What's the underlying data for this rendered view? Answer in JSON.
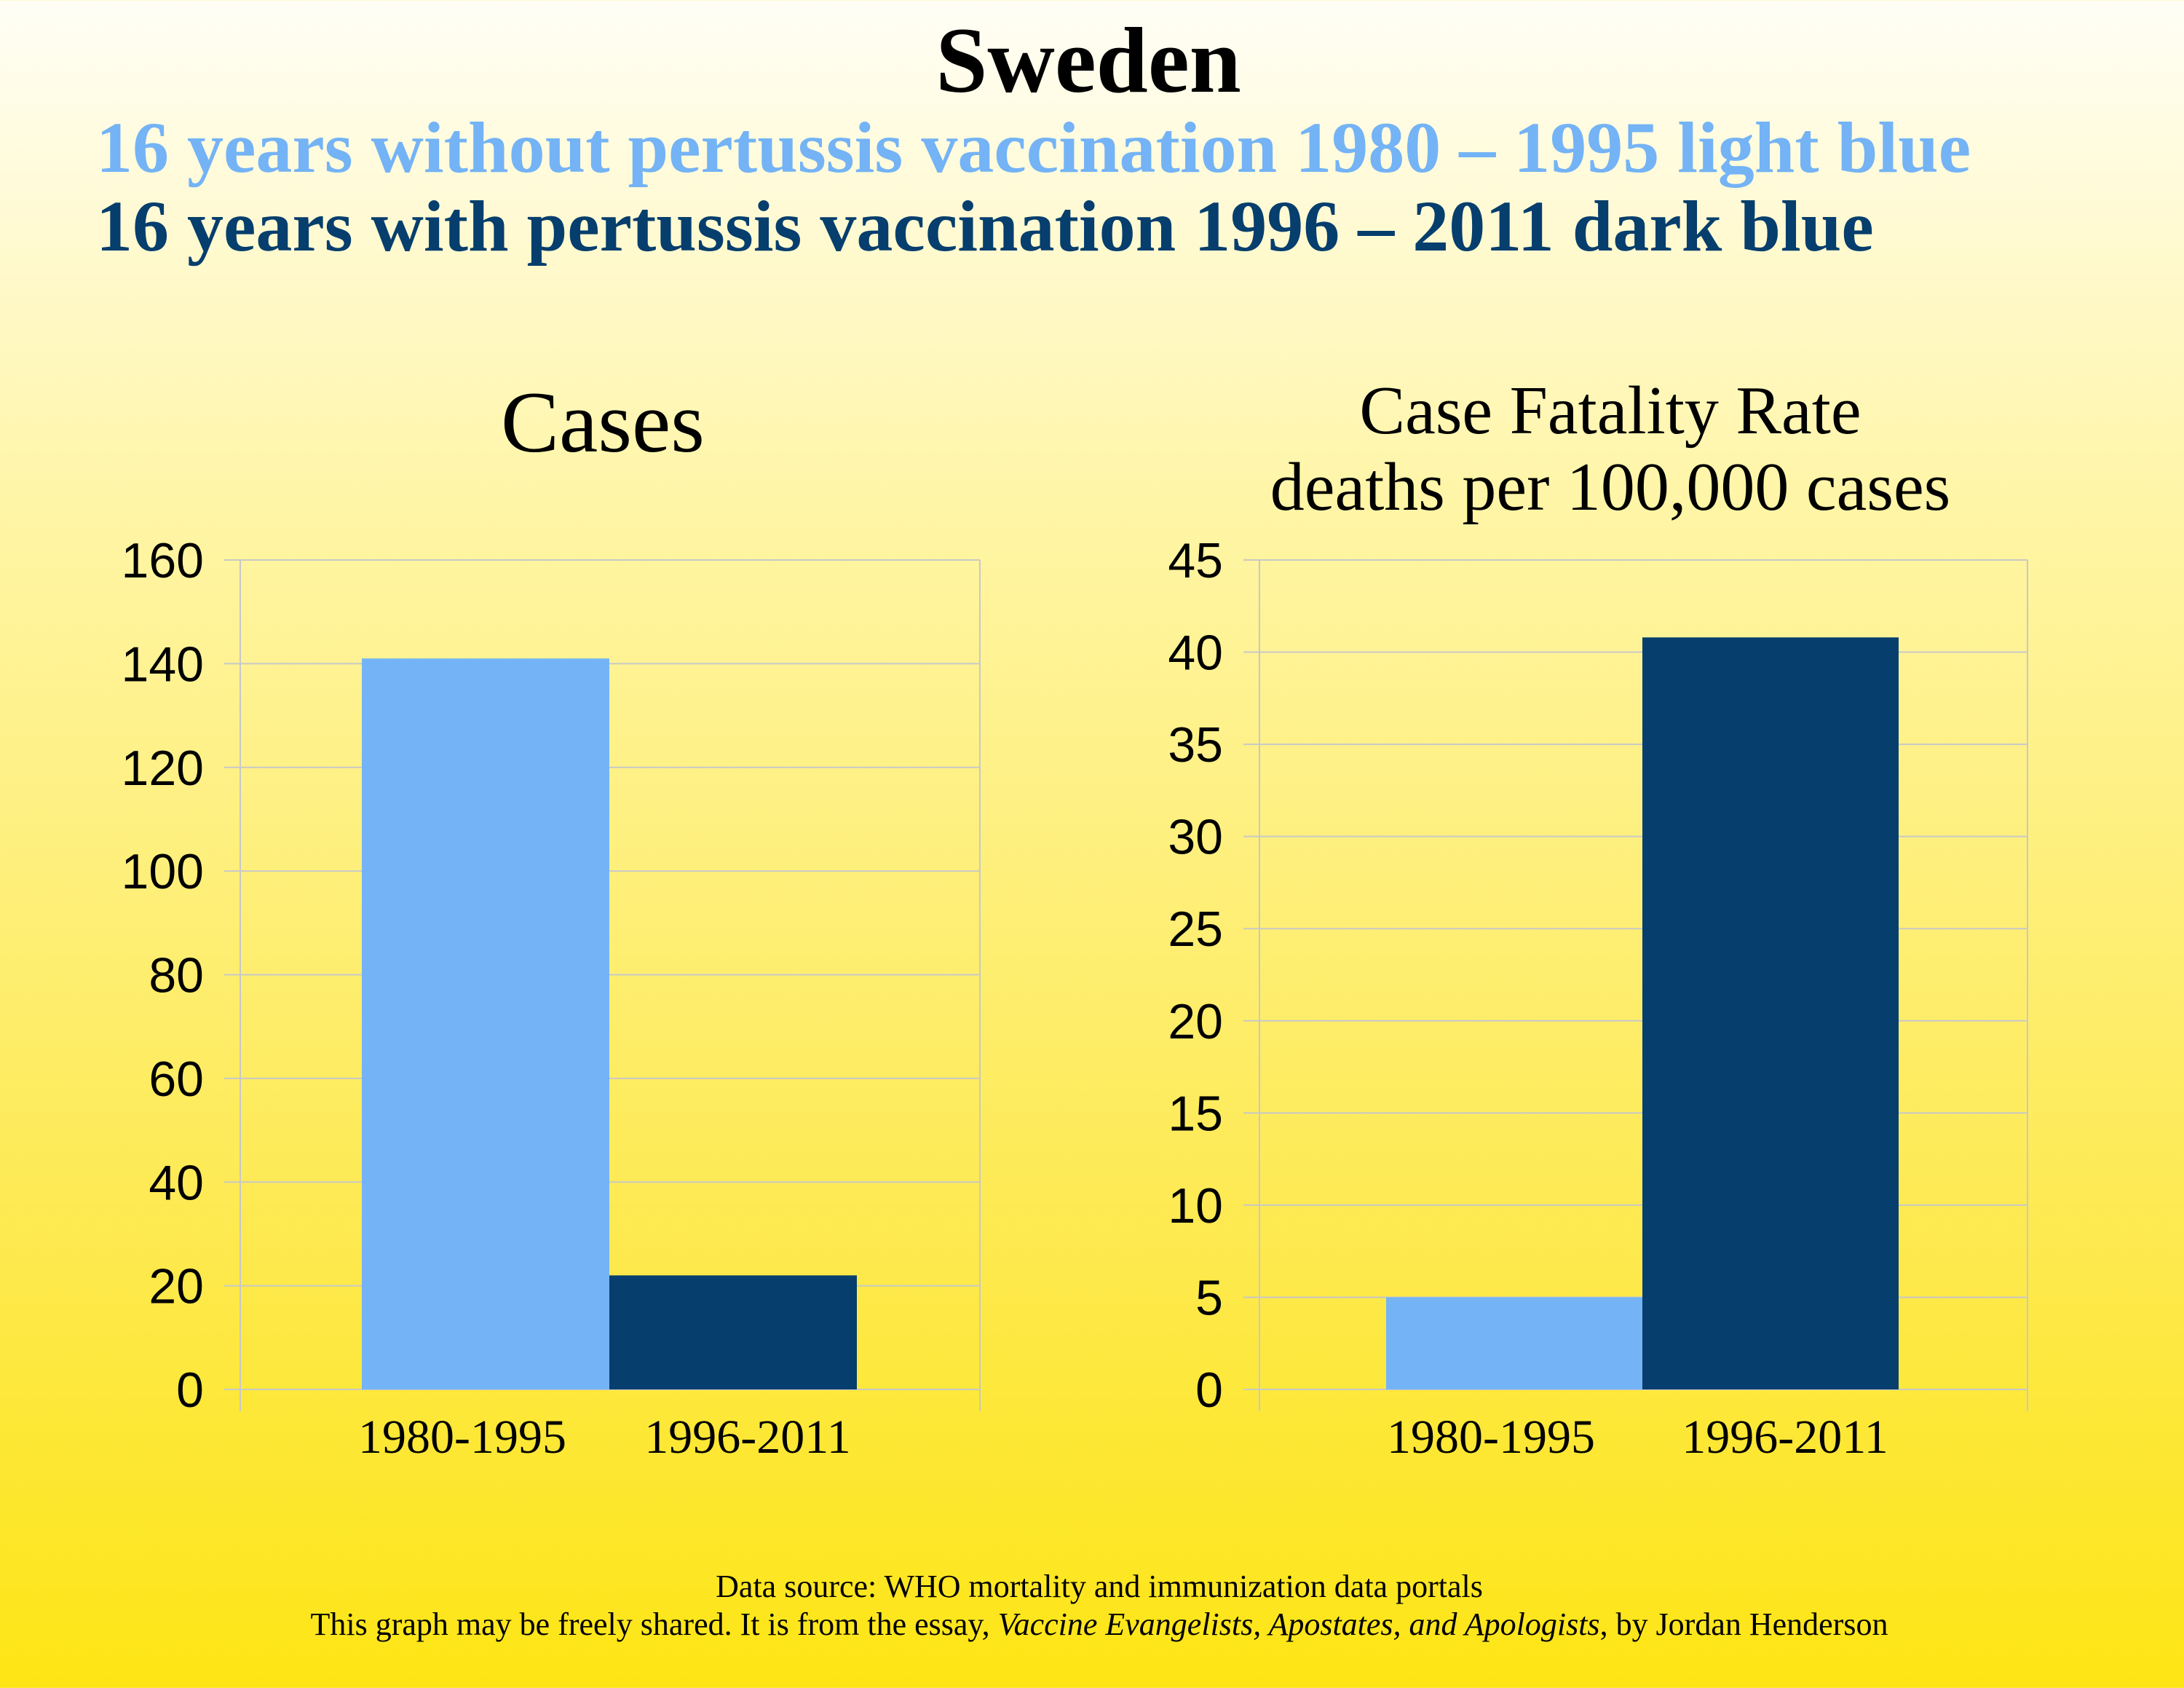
{
  "title": "Sweden",
  "subtitles": [
    "16 years without pertussis vaccination 1980 – 1995 light blue",
    "16 years with pertussis vaccination 1996 – 2011 dark blue"
  ],
  "colors": {
    "light_blue": "#74b3f5",
    "dark_blue": "#063e6d",
    "gridline": "#c8c8c8",
    "background_top": "#fffef6",
    "background_bottom": "#fde514"
  },
  "chart_data": [
    {
      "type": "bar",
      "title": "Cases",
      "title_lines": [
        "Cases"
      ],
      "categories": [
        "1980-1995",
        "1996-2011"
      ],
      "values": [
        141,
        22
      ],
      "bar_colors": [
        "#74b3f5",
        "#063e6d"
      ],
      "ylim": [
        0,
        160
      ],
      "yticks": [
        0,
        20,
        40,
        60,
        80,
        100,
        120,
        140,
        160
      ],
      "xlabel": "",
      "ylabel": "",
      "grid": true,
      "legend": "none"
    },
    {
      "type": "bar",
      "title": "Case Fatality Rate deaths per 100,000 cases",
      "title_lines": [
        "Case Fatality Rate",
        "deaths per 100,000 cases"
      ],
      "categories": [
        "1980-1995",
        "1996-2011"
      ],
      "values": [
        5,
        40.8
      ],
      "bar_colors": [
        "#74b3f5",
        "#063e6d"
      ],
      "ylim": [
        0,
        45
      ],
      "yticks": [
        0,
        5,
        10,
        15,
        20,
        25,
        30,
        35,
        40,
        45
      ],
      "xlabel": "",
      "ylabel": "",
      "grid": true,
      "legend": "none"
    }
  ],
  "footer": {
    "line1": "Data source: WHO mortality and immunization data portals",
    "line2_prefix": "This graph may be freely shared. It is from the essay, ",
    "line2_title": "Vaccine Evangelists, Apostates, and Apologists",
    "line2_suffix": ", by Jordan Henderson"
  }
}
